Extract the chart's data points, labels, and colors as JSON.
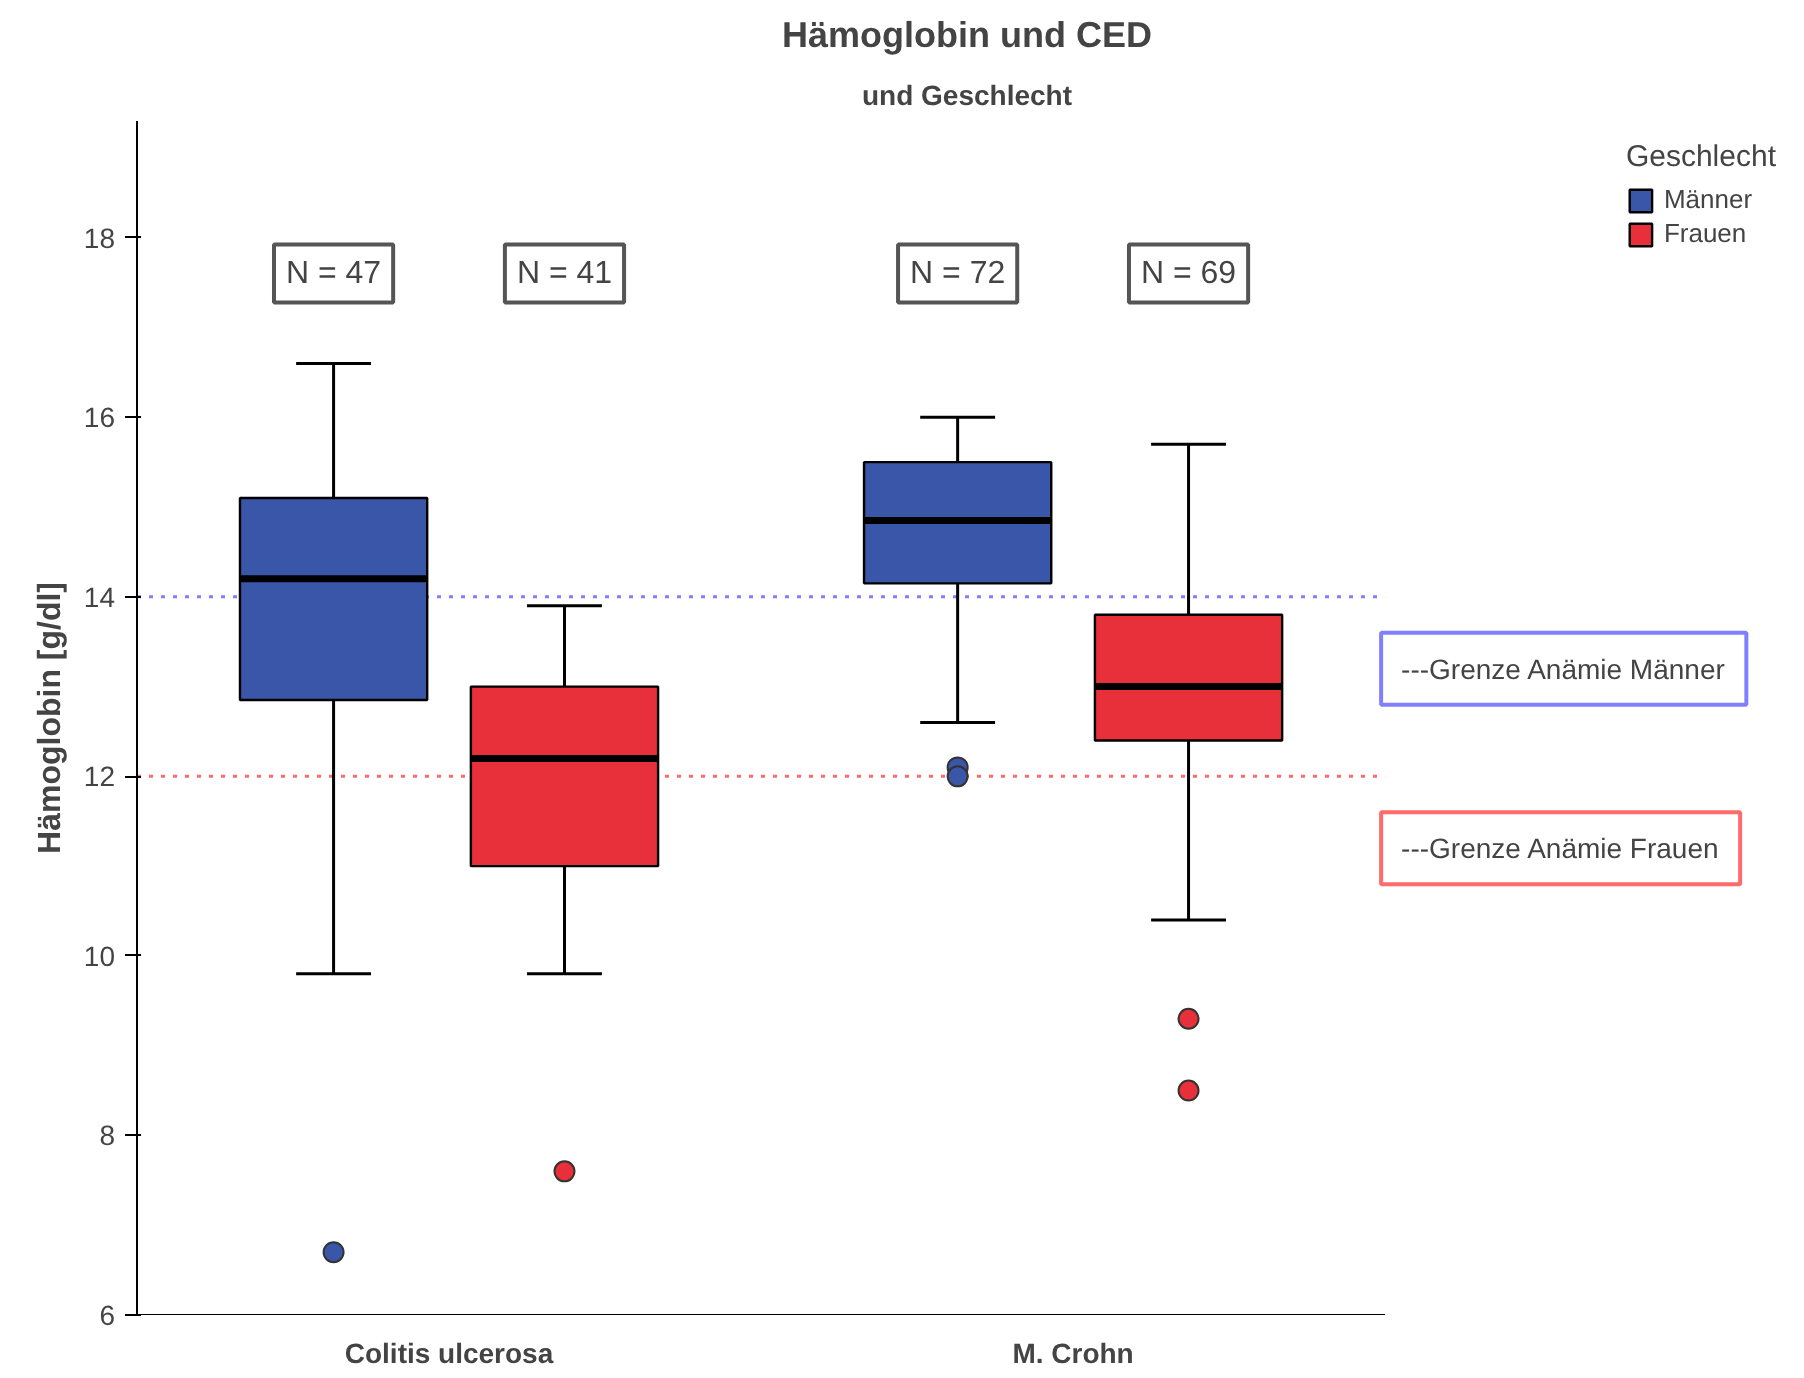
{
  "chart_data": {
    "type": "box",
    "title": "Hämoglobin und CED",
    "subtitle": "und Geschlecht",
    "ylabel": "Hämoglobin [g/dl]",
    "legend_title": "Geschlecht",
    "legend": "top right",
    "grid": false,
    "categories": [
      "Colitis ulcerosa",
      "M. Crohn"
    ],
    "ylim": [
      6,
      19.3
    ],
    "yticks": [
      6,
      8,
      10,
      12,
      14,
      16,
      18
    ],
    "series": [
      {
        "name": "Männer",
        "color": "#3a56a8",
        "boxes": [
          {
            "low": 9.8,
            "q1": 12.85,
            "median": 14.2,
            "q3": 15.1,
            "high": 16.6,
            "outliers": [
              6.7
            ]
          },
          {
            "low": 12.6,
            "q1": 14.15,
            "median": 14.85,
            "q3": 15.5,
            "high": 16.0,
            "outliers": [
              12.1,
              12.0
            ]
          }
        ]
      },
      {
        "name": "Frauen",
        "color": "#e8303a",
        "boxes": [
          {
            "low": 9.8,
            "q1": 11.0,
            "median": 12.2,
            "q3": 13.0,
            "high": 13.9,
            "outliers": [
              7.6
            ]
          },
          {
            "low": 10.4,
            "q1": 12.4,
            "median": 13.0,
            "q3": 13.8,
            "high": 15.7,
            "outliers": [
              9.3,
              8.5
            ]
          }
        ]
      }
    ],
    "annotations": [
      "N = 47",
      "N = 41",
      "N = 72",
      "N = 69"
    ],
    "ref_lines": [
      {
        "axis": "y",
        "value": 14,
        "label": "---Grenze Anämie Männer",
        "color": "#8080ff",
        "line_style": "dotted"
      },
      {
        "axis": "y",
        "value": 12,
        "label": "---Grenze Anämie Frauen",
        "color": "#ff6b6b",
        "line_style": "dotted"
      }
    ]
  }
}
